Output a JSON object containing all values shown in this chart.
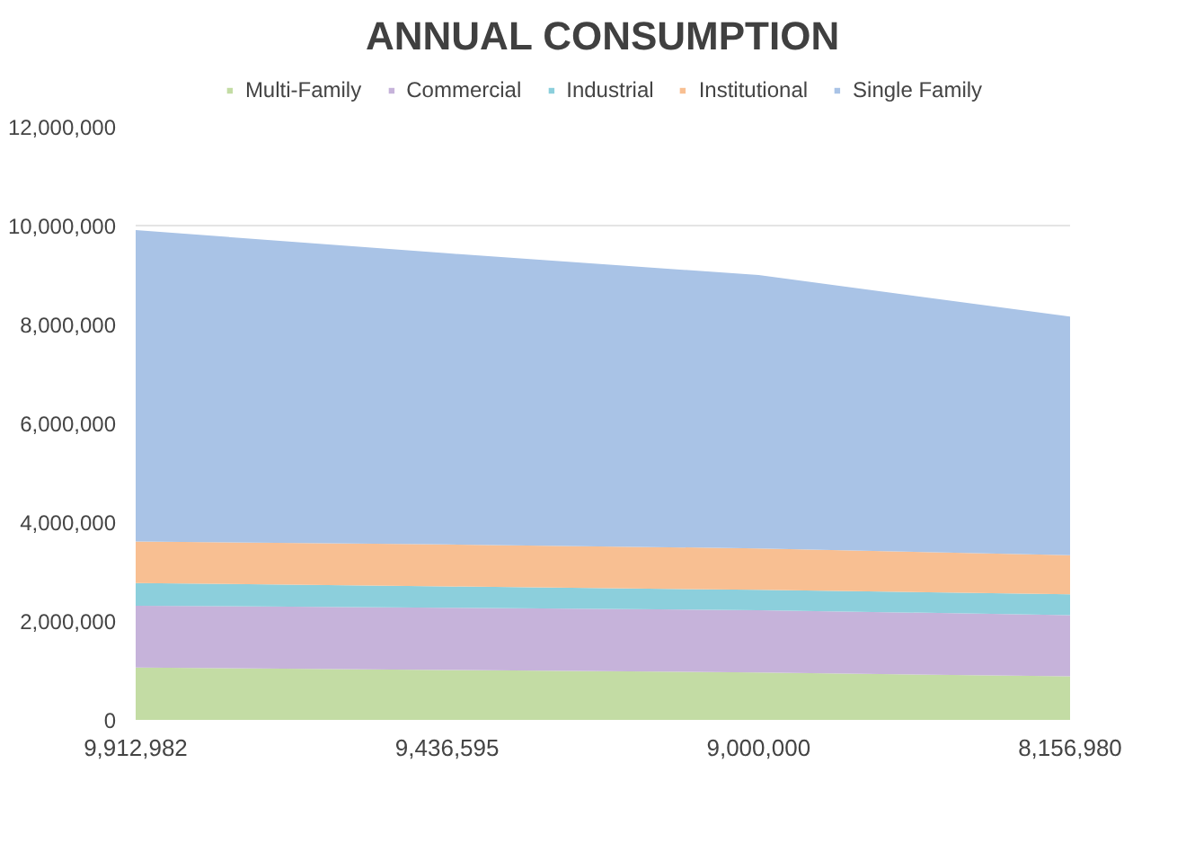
{
  "chart_data": {
    "type": "area",
    "stacked": true,
    "title": "ANNUAL CONSUMPTION",
    "categories": [
      "9,912,982",
      "9,436,595",
      "9,000,000",
      "8,156,980"
    ],
    "series": [
      {
        "name": "Multi-Family",
        "color": "#c3dca4",
        "values": [
          1060000,
          1010000,
          960000,
          880000
        ]
      },
      {
        "name": "Commercial",
        "color": "#c6b3da",
        "values": [
          1250000,
          1260000,
          1260000,
          1240000
        ]
      },
      {
        "name": "Industrial",
        "color": "#8ccfdc",
        "values": [
          460000,
          430000,
          410000,
          420000
        ]
      },
      {
        "name": "Institutional",
        "color": "#f8bf92",
        "values": [
          840000,
          850000,
          840000,
          790000
        ]
      },
      {
        "name": "Single Family",
        "color": "#a9c3e6",
        "values": [
          6300000,
          5890000,
          5530000,
          4830000
        ]
      }
    ],
    "ylim": [
      0,
      12000000
    ],
    "yticks": [
      {
        "value": 0,
        "label": "0"
      },
      {
        "value": 2000000,
        "label": "2,000,000"
      },
      {
        "value": 4000000,
        "label": "4,000,000"
      },
      {
        "value": 6000000,
        "label": "6,000,000"
      },
      {
        "value": 8000000,
        "label": "8,000,000"
      },
      {
        "value": 10000000,
        "label": "10,000,000"
      },
      {
        "value": 12000000,
        "label": "12,000,000"
      }
    ],
    "grid": "y",
    "legend": "top"
  }
}
